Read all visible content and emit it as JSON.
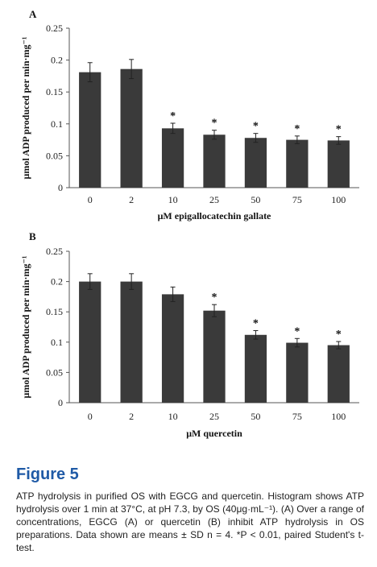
{
  "chart_data": [
    {
      "type": "bar",
      "panel_label": "A",
      "categories": [
        "0",
        "2",
        "10",
        "25",
        "50",
        "75",
        "100"
      ],
      "values": [
        0.181,
        0.186,
        0.093,
        0.083,
        0.078,
        0.075,
        0.074
      ],
      "errors": [
        0.015,
        0.015,
        0.008,
        0.007,
        0.007,
        0.006,
        0.006
      ],
      "significant": [
        false,
        false,
        true,
        true,
        true,
        true,
        true
      ],
      "sig_marker": "*",
      "xlabel": "μM epigallocatechin gallate",
      "ylabel": "μmol ADP produced per min·mg⁻¹",
      "ylim": [
        0,
        0.25
      ],
      "yticks": [
        "0",
        "0.05",
        "0.1",
        "0.15",
        "0.2",
        "0.25"
      ],
      "ytick_values": [
        0,
        0.05,
        0.1,
        0.15,
        0.2,
        0.25
      ],
      "grid": false,
      "bar_color": "#3a3a3a"
    },
    {
      "type": "bar",
      "panel_label": "B",
      "categories": [
        "0",
        "2",
        "10",
        "25",
        "50",
        "75",
        "100"
      ],
      "values": [
        0.2,
        0.2,
        0.179,
        0.152,
        0.112,
        0.099,
        0.095
      ],
      "errors": [
        0.013,
        0.013,
        0.012,
        0.01,
        0.007,
        0.007,
        0.006
      ],
      "significant": [
        false,
        false,
        false,
        true,
        true,
        true,
        true
      ],
      "sig_marker": "*",
      "xlabel": "μM quercetin",
      "ylabel": "μmol ADP produced per min·mg⁻¹",
      "ylim": [
        0,
        0.25
      ],
      "yticks": [
        "0",
        "0.05",
        "0.1",
        "0.15",
        "0.2",
        "0.25"
      ],
      "ytick_values": [
        0,
        0.05,
        0.1,
        0.15,
        0.2,
        0.25
      ],
      "grid": false,
      "bar_color": "#3a3a3a"
    }
  ],
  "caption": {
    "title": "Figure 5",
    "text": "ATP hydrolysis in purified OS with EGCG and quercetin. Histogram shows ATP hydrolysis over 1 min at 37°C, at pH 7.3, by OS (40μg·mL⁻¹). (A) Over a range of concentrations, EGCG (A) or quercetin (B) inhibit ATP hydrolysis in OS preparations. Data shown are means ± SD n = 4. *P < 0.01, paired Student's t-test."
  },
  "colors": {
    "caption_title": "#1f5aa6",
    "text": "#222222"
  }
}
